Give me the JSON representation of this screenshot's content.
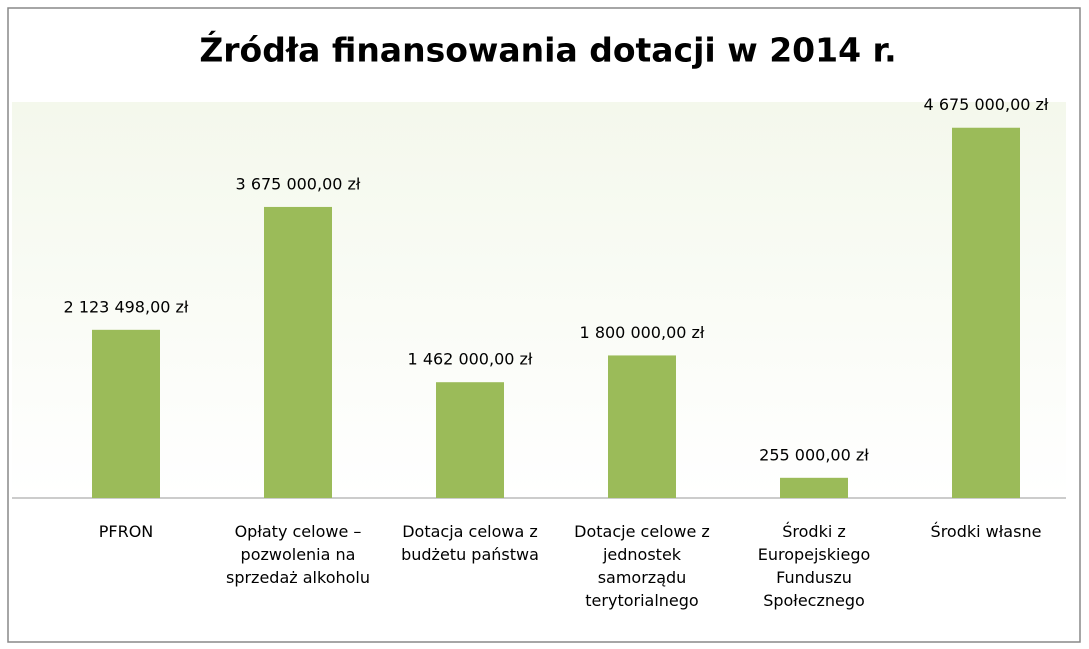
{
  "chart_data": {
    "type": "bar",
    "title": "Źródła finansowania dotacji w 2014 r.",
    "categories": [
      "PFRON",
      "Opłaty celowe – pozwolenia na sprzedaż alkoholu",
      "Dotacja celowa z budżetu państwa",
      "Dotacje celowe z jednostek samorządu terytorialnego",
      "Środki z Europejskiego Funduszu Społecznego",
      "Środki własne"
    ],
    "values": [
      2123498,
      3675000,
      1462000,
      1800000,
      255000,
      4675000
    ],
    "value_labels": [
      "2 123 498,00 zł",
      "3 675 000,00 zł",
      "1 462 000,00 zł",
      "1 800 000,00 zł",
      "255 000,00 zł",
      "4 675 000,00 zł"
    ],
    "color": "#9bbb59",
    "ylim": [
      0,
      5000000
    ]
  }
}
